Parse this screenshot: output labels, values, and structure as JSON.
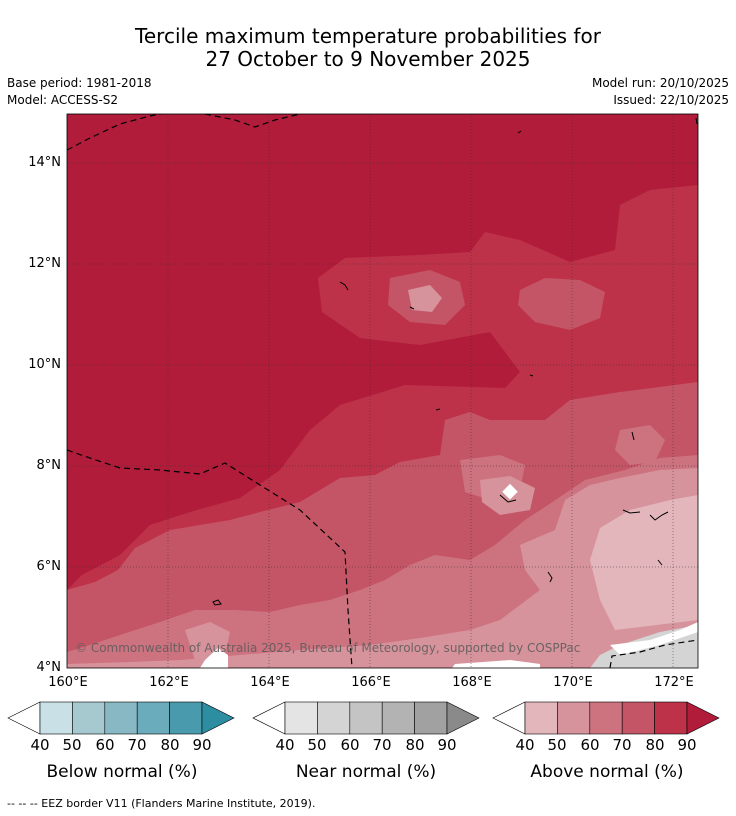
{
  "title_line1": "Tercile maximum temperature probabilities for",
  "title_line2": "27 October to 9 November 2025",
  "base_period": "Base period: 1981-2018",
  "model": "Model: ACCESS-S2",
  "model_run": "Model run: 20/10/2025",
  "issued": "Issued: 22/10/2025",
  "lat_labels": [
    "14°N",
    "12°N",
    "10°N",
    "8°N",
    "6°N",
    "4°N"
  ],
  "lon_labels": [
    "160°E",
    "162°E",
    "164°E",
    "166°E",
    "168°E",
    "170°E",
    "172°E"
  ],
  "copyright": "© Commonwealth of Australia 2025, Bureau of Meteorology, supported by COSPPac",
  "colorbars": [
    {
      "title": "Below normal (%)",
      "ticks": [
        "40",
        "50",
        "60",
        "70",
        "80",
        "90"
      ],
      "colors": [
        "#ffffff",
        "#c9e0e6",
        "#a6c8cf",
        "#88b8c3",
        "#6aacbb",
        "#4a9aad",
        "#2d8ea2"
      ]
    },
    {
      "title": "Near normal (%)",
      "ticks": [
        "40",
        "50",
        "60",
        "70",
        "80",
        "90"
      ],
      "colors": [
        "#ffffff",
        "#e4e4e4",
        "#d4d4d4",
        "#c4c4c4",
        "#b3b3b3",
        "#a1a1a1",
        "#8a8a8a"
      ]
    },
    {
      "title": "Above normal (%)",
      "ticks": [
        "40",
        "50",
        "60",
        "70",
        "80",
        "90"
      ],
      "colors": [
        "#ffffff",
        "#e3b6bc",
        "#d6939c",
        "#cd7380",
        "#c45566",
        "#bd3249",
        "#b11c3b"
      ]
    }
  ],
  "footnote": "--  --  -- EEZ border V11 (Flanders Marine Institute, 2019)."
}
